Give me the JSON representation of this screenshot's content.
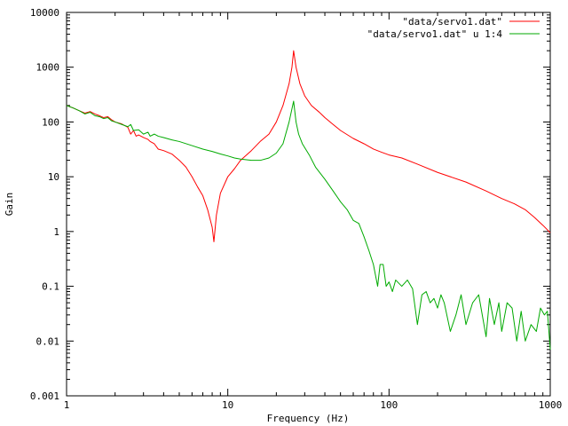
{
  "chart_data": {
    "type": "line",
    "title": "",
    "xlabel": "Frequency (Hz)",
    "ylabel": "Gain",
    "xscale": "log",
    "yscale": "log",
    "xlim": [
      1,
      1000
    ],
    "ylim": [
      0.001,
      10000
    ],
    "x_ticks": [
      {
        "value": 1,
        "label": "1"
      },
      {
        "value": 10,
        "label": "10"
      },
      {
        "value": 100,
        "label": "100"
      },
      {
        "value": 1000,
        "label": "1000"
      }
    ],
    "y_ticks": [
      {
        "value": 0.001,
        "label": "0.001"
      },
      {
        "value": 0.01,
        "label": "0.01"
      },
      {
        "value": 0.1,
        "label": "0.1"
      },
      {
        "value": 1,
        "label": "1"
      },
      {
        "value": 10,
        "label": "10"
      },
      {
        "value": 100,
        "label": "100"
      },
      {
        "value": 1000,
        "label": "1000"
      },
      {
        "value": 10000,
        "label": "10000"
      }
    ],
    "grid": false,
    "legend_position": "top-right",
    "series": [
      {
        "name": "\"data/servo1.dat\"",
        "color": "#ff0000",
        "points": [
          [
            1,
            200
          ],
          [
            1.1,
            180
          ],
          [
            1.2,
            160
          ],
          [
            1.3,
            145
          ],
          [
            1.4,
            155
          ],
          [
            1.5,
            140
          ],
          [
            1.6,
            130
          ],
          [
            1.7,
            120
          ],
          [
            1.8,
            125
          ],
          [
            1.9,
            110
          ],
          [
            2.0,
            100
          ],
          [
            2.2,
            92
          ],
          [
            2.4,
            80
          ],
          [
            2.5,
            60
          ],
          [
            2.6,
            70
          ],
          [
            2.7,
            55
          ],
          [
            2.8,
            58
          ],
          [
            3.0,
            52
          ],
          [
            3.2,
            48
          ],
          [
            3.3,
            44
          ],
          [
            3.5,
            40
          ],
          [
            3.7,
            32
          ],
          [
            4.0,
            30
          ],
          [
            4.5,
            26
          ],
          [
            5.0,
            20
          ],
          [
            5.5,
            15
          ],
          [
            6.0,
            10
          ],
          [
            6.5,
            6.5
          ],
          [
            7.0,
            4.5
          ],
          [
            7.5,
            2.5
          ],
          [
            8.0,
            1.2
          ],
          [
            8.2,
            0.65
          ],
          [
            8.5,
            2.0
          ],
          [
            9.0,
            5
          ],
          [
            10,
            10
          ],
          [
            11,
            14
          ],
          [
            12,
            20
          ],
          [
            14,
            30
          ],
          [
            16,
            45
          ],
          [
            18,
            60
          ],
          [
            20,
            100
          ],
          [
            22,
            200
          ],
          [
            24,
            500
          ],
          [
            25,
            1000
          ],
          [
            25.6,
            2000
          ],
          [
            26.5,
            1000
          ],
          [
            28,
            500
          ],
          [
            30,
            300
          ],
          [
            33,
            200
          ],
          [
            37,
            150
          ],
          [
            40,
            120
          ],
          [
            45,
            90
          ],
          [
            50,
            70
          ],
          [
            60,
            50
          ],
          [
            70,
            40
          ],
          [
            80,
            32
          ],
          [
            90,
            28
          ],
          [
            100,
            25
          ],
          [
            120,
            22
          ],
          [
            150,
            17
          ],
          [
            200,
            12
          ],
          [
            300,
            8
          ],
          [
            400,
            5.5
          ],
          [
            500,
            4
          ],
          [
            600,
            3.2
          ],
          [
            700,
            2.5
          ],
          [
            800,
            1.8
          ],
          [
            900,
            1.3
          ],
          [
            1000,
            0.95
          ]
        ]
      },
      {
        "name": "\"data/servo1.dat\" u 1:4",
        "color": "#00aa00",
        "points": [
          [
            1,
            200
          ],
          [
            1.1,
            180
          ],
          [
            1.2,
            160
          ],
          [
            1.3,
            140
          ],
          [
            1.4,
            150
          ],
          [
            1.5,
            130
          ],
          [
            1.6,
            125
          ],
          [
            1.7,
            115
          ],
          [
            1.8,
            120
          ],
          [
            1.9,
            105
          ],
          [
            2.0,
            100
          ],
          [
            2.2,
            90
          ],
          [
            2.4,
            82
          ],
          [
            2.5,
            90
          ],
          [
            2.6,
            70
          ],
          [
            2.8,
            72
          ],
          [
            3.0,
            60
          ],
          [
            3.2,
            65
          ],
          [
            3.3,
            55
          ],
          [
            3.5,
            60
          ],
          [
            3.7,
            55
          ],
          [
            4.0,
            52
          ],
          [
            4.5,
            47
          ],
          [
            5.0,
            44
          ],
          [
            6.0,
            37
          ],
          [
            7.0,
            32
          ],
          [
            8.0,
            29
          ],
          [
            9.0,
            26
          ],
          [
            10,
            24
          ],
          [
            11,
            22
          ],
          [
            12,
            21
          ],
          [
            14,
            20
          ],
          [
            16,
            20
          ],
          [
            18,
            22
          ],
          [
            20,
            27
          ],
          [
            22,
            40
          ],
          [
            24,
            100
          ],
          [
            25.6,
            240
          ],
          [
            26.5,
            100
          ],
          [
            27.5,
            60
          ],
          [
            29,
            40
          ],
          [
            32,
            25
          ],
          [
            35,
            15
          ],
          [
            40,
            9
          ],
          [
            45,
            5.5
          ],
          [
            50,
            3.5
          ],
          [
            55,
            2.5
          ],
          [
            60,
            1.6
          ],
          [
            65,
            1.4
          ],
          [
            70,
            0.8
          ],
          [
            75,
            0.45
          ],
          [
            80,
            0.25
          ],
          [
            85,
            0.1
          ],
          [
            88,
            0.25
          ],
          [
            92,
            0.25
          ],
          [
            96,
            0.1
          ],
          [
            100,
            0.12
          ],
          [
            105,
            0.08
          ],
          [
            110,
            0.13
          ],
          [
            120,
            0.1
          ],
          [
            130,
            0.13
          ],
          [
            140,
            0.09
          ],
          [
            150,
            0.02
          ],
          [
            160,
            0.07
          ],
          [
            170,
            0.08
          ],
          [
            180,
            0.05
          ],
          [
            190,
            0.06
          ],
          [
            200,
            0.04
          ],
          [
            210,
            0.07
          ],
          [
            220,
            0.05
          ],
          [
            240,
            0.015
          ],
          [
            260,
            0.03
          ],
          [
            280,
            0.07
          ],
          [
            300,
            0.02
          ],
          [
            330,
            0.05
          ],
          [
            360,
            0.07
          ],
          [
            400,
            0.012
          ],
          [
            420,
            0.06
          ],
          [
            450,
            0.02
          ],
          [
            480,
            0.05
          ],
          [
            500,
            0.015
          ],
          [
            540,
            0.05
          ],
          [
            580,
            0.04
          ],
          [
            620,
            0.01
          ],
          [
            660,
            0.035
          ],
          [
            700,
            0.01
          ],
          [
            760,
            0.02
          ],
          [
            820,
            0.015
          ],
          [
            870,
            0.04
          ],
          [
            920,
            0.03
          ],
          [
            960,
            0.035
          ],
          [
            1000,
            0.007
          ]
        ]
      }
    ]
  }
}
